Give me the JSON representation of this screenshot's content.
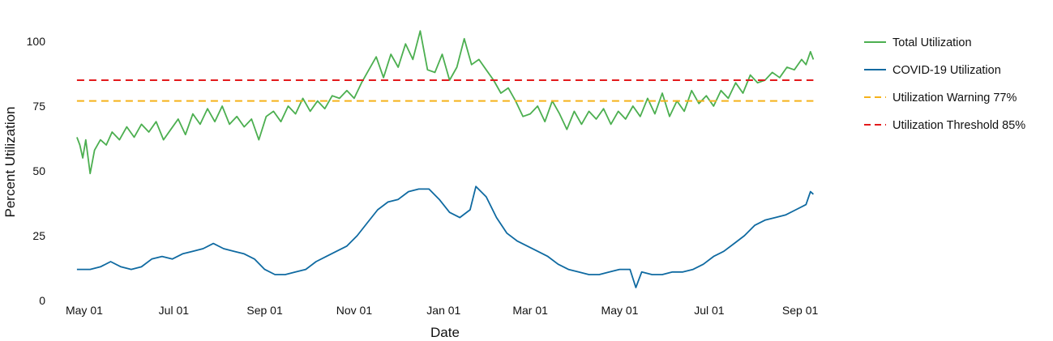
{
  "colors": {
    "total": "#4caf50",
    "covid": "#0f6aa1",
    "warning": "#f5b21b",
    "threshold": "#e31a1c"
  },
  "chart_data": {
    "type": "line",
    "title": "",
    "xlabel": "Date",
    "ylabel": "Percent Utilization",
    "x_range": [
      "2020-04-15",
      "2021-09-12"
    ],
    "ylim": [
      0,
      100
    ],
    "yticks": [
      0,
      25,
      50,
      75,
      100
    ],
    "xticks": [
      {
        "date": "2020-05-01",
        "label": "May 01"
      },
      {
        "date": "2020-07-01",
        "label": "Jul 01"
      },
      {
        "date": "2020-09-01",
        "label": "Sep 01"
      },
      {
        "date": "2020-11-01",
        "label": "Nov 01"
      },
      {
        "date": "2021-01-01",
        "label": "Jan 01"
      },
      {
        "date": "2021-03-01",
        "label": "Mar 01"
      },
      {
        "date": "2021-05-01",
        "label": "May 01"
      },
      {
        "date": "2021-07-01",
        "label": "Jul 01"
      },
      {
        "date": "2021-09-01",
        "label": "Sep 01"
      }
    ],
    "grid": false,
    "legend_position": "right",
    "series": [
      {
        "name": "Total Utilization",
        "style": "solid",
        "points": [
          [
            "2020-04-26",
            63
          ],
          [
            "2020-04-28",
            60
          ],
          [
            "2020-04-30",
            55
          ],
          [
            "2020-05-02",
            62
          ],
          [
            "2020-05-05",
            49
          ],
          [
            "2020-05-08",
            58
          ],
          [
            "2020-05-12",
            62
          ],
          [
            "2020-05-16",
            60
          ],
          [
            "2020-05-20",
            65
          ],
          [
            "2020-05-25",
            62
          ],
          [
            "2020-05-30",
            67
          ],
          [
            "2020-06-04",
            63
          ],
          [
            "2020-06-09",
            68
          ],
          [
            "2020-06-14",
            65
          ],
          [
            "2020-06-19",
            69
          ],
          [
            "2020-06-24",
            62
          ],
          [
            "2020-06-29",
            66
          ],
          [
            "2020-07-04",
            70
          ],
          [
            "2020-07-09",
            64
          ],
          [
            "2020-07-14",
            72
          ],
          [
            "2020-07-19",
            68
          ],
          [
            "2020-07-24",
            74
          ],
          [
            "2020-07-29",
            69
          ],
          [
            "2020-08-03",
            75
          ],
          [
            "2020-08-08",
            68
          ],
          [
            "2020-08-13",
            71
          ],
          [
            "2020-08-18",
            67
          ],
          [
            "2020-08-23",
            70
          ],
          [
            "2020-08-28",
            62
          ],
          [
            "2020-09-02",
            71
          ],
          [
            "2020-09-07",
            73
          ],
          [
            "2020-09-12",
            69
          ],
          [
            "2020-09-17",
            75
          ],
          [
            "2020-09-22",
            72
          ],
          [
            "2020-09-27",
            78
          ],
          [
            "2020-10-02",
            73
          ],
          [
            "2020-10-07",
            77
          ],
          [
            "2020-10-12",
            74
          ],
          [
            "2020-10-17",
            79
          ],
          [
            "2020-10-22",
            78
          ],
          [
            "2020-10-27",
            81
          ],
          [
            "2020-11-01",
            78
          ],
          [
            "2020-11-06",
            84
          ],
          [
            "2020-11-11",
            89
          ],
          [
            "2020-11-16",
            94
          ],
          [
            "2020-11-21",
            86
          ],
          [
            "2020-11-26",
            95
          ],
          [
            "2020-12-01",
            90
          ],
          [
            "2020-12-06",
            99
          ],
          [
            "2020-12-11",
            93
          ],
          [
            "2020-12-16",
            104
          ],
          [
            "2020-12-21",
            89
          ],
          [
            "2020-12-26",
            88
          ],
          [
            "2020-12-31",
            95
          ],
          [
            "2021-01-05",
            85
          ],
          [
            "2021-01-10",
            90
          ],
          [
            "2021-01-15",
            101
          ],
          [
            "2021-01-20",
            91
          ],
          [
            "2021-01-25",
            93
          ],
          [
            "2021-01-30",
            89
          ],
          [
            "2021-02-04",
            85
          ],
          [
            "2021-02-09",
            80
          ],
          [
            "2021-02-14",
            82
          ],
          [
            "2021-02-19",
            77
          ],
          [
            "2021-02-24",
            71
          ],
          [
            "2021-03-01",
            72
          ],
          [
            "2021-03-06",
            75
          ],
          [
            "2021-03-11",
            69
          ],
          [
            "2021-03-16",
            77
          ],
          [
            "2021-03-21",
            72
          ],
          [
            "2021-03-26",
            66
          ],
          [
            "2021-03-31",
            73
          ],
          [
            "2021-04-05",
            68
          ],
          [
            "2021-04-10",
            73
          ],
          [
            "2021-04-15",
            70
          ],
          [
            "2021-04-20",
            74
          ],
          [
            "2021-04-25",
            68
          ],
          [
            "2021-04-30",
            73
          ],
          [
            "2021-05-05",
            70
          ],
          [
            "2021-05-10",
            75
          ],
          [
            "2021-05-15",
            71
          ],
          [
            "2021-05-20",
            78
          ],
          [
            "2021-05-25",
            72
          ],
          [
            "2021-05-30",
            80
          ],
          [
            "2021-06-04",
            71
          ],
          [
            "2021-06-09",
            77
          ],
          [
            "2021-06-14",
            73
          ],
          [
            "2021-06-19",
            81
          ],
          [
            "2021-06-24",
            76
          ],
          [
            "2021-06-29",
            79
          ],
          [
            "2021-07-04",
            75
          ],
          [
            "2021-07-09",
            81
          ],
          [
            "2021-07-14",
            78
          ],
          [
            "2021-07-19",
            84
          ],
          [
            "2021-07-24",
            80
          ],
          [
            "2021-07-29",
            87
          ],
          [
            "2021-08-03",
            84
          ],
          [
            "2021-08-08",
            85
          ],
          [
            "2021-08-13",
            88
          ],
          [
            "2021-08-18",
            86
          ],
          [
            "2021-08-23",
            90
          ],
          [
            "2021-08-28",
            89
          ],
          [
            "2021-09-02",
            93
          ],
          [
            "2021-09-05",
            91
          ],
          [
            "2021-09-08",
            96
          ],
          [
            "2021-09-10",
            93
          ]
        ]
      },
      {
        "name": "COVID-19 Utilization",
        "style": "solid",
        "points": [
          [
            "2020-04-26",
            12
          ],
          [
            "2020-05-05",
            12
          ],
          [
            "2020-05-12",
            13
          ],
          [
            "2020-05-19",
            15
          ],
          [
            "2020-05-26",
            13
          ],
          [
            "2020-06-02",
            12
          ],
          [
            "2020-06-09",
            13
          ],
          [
            "2020-06-16",
            16
          ],
          [
            "2020-06-23",
            17
          ],
          [
            "2020-06-30",
            16
          ],
          [
            "2020-07-07",
            18
          ],
          [
            "2020-07-14",
            19
          ],
          [
            "2020-07-21",
            20
          ],
          [
            "2020-07-28",
            22
          ],
          [
            "2020-08-04",
            20
          ],
          [
            "2020-08-11",
            19
          ],
          [
            "2020-08-18",
            18
          ],
          [
            "2020-08-25",
            16
          ],
          [
            "2020-09-01",
            12
          ],
          [
            "2020-09-08",
            10
          ],
          [
            "2020-09-15",
            10
          ],
          [
            "2020-09-22",
            11
          ],
          [
            "2020-09-29",
            12
          ],
          [
            "2020-10-06",
            15
          ],
          [
            "2020-10-13",
            17
          ],
          [
            "2020-10-20",
            19
          ],
          [
            "2020-10-27",
            21
          ],
          [
            "2020-11-03",
            25
          ],
          [
            "2020-11-10",
            30
          ],
          [
            "2020-11-17",
            35
          ],
          [
            "2020-11-24",
            38
          ],
          [
            "2020-12-01",
            39
          ],
          [
            "2020-12-08",
            42
          ],
          [
            "2020-12-15",
            43
          ],
          [
            "2020-12-22",
            43
          ],
          [
            "2020-12-29",
            39
          ],
          [
            "2021-01-05",
            34
          ],
          [
            "2021-01-12",
            32
          ],
          [
            "2021-01-19",
            35
          ],
          [
            "2021-01-23",
            44
          ],
          [
            "2021-01-30",
            40
          ],
          [
            "2021-02-06",
            32
          ],
          [
            "2021-02-13",
            26
          ],
          [
            "2021-02-20",
            23
          ],
          [
            "2021-02-27",
            21
          ],
          [
            "2021-03-06",
            19
          ],
          [
            "2021-03-13",
            17
          ],
          [
            "2021-03-20",
            14
          ],
          [
            "2021-03-27",
            12
          ],
          [
            "2021-04-03",
            11
          ],
          [
            "2021-04-10",
            10
          ],
          [
            "2021-04-17",
            10
          ],
          [
            "2021-04-24",
            11
          ],
          [
            "2021-05-01",
            12
          ],
          [
            "2021-05-08",
            12
          ],
          [
            "2021-05-12",
            5
          ],
          [
            "2021-05-16",
            11
          ],
          [
            "2021-05-23",
            10
          ],
          [
            "2021-05-30",
            10
          ],
          [
            "2021-06-06",
            11
          ],
          [
            "2021-06-13",
            11
          ],
          [
            "2021-06-20",
            12
          ],
          [
            "2021-06-27",
            14
          ],
          [
            "2021-07-04",
            17
          ],
          [
            "2021-07-11",
            19
          ],
          [
            "2021-07-18",
            22
          ],
          [
            "2021-07-25",
            25
          ],
          [
            "2021-08-01",
            29
          ],
          [
            "2021-08-08",
            31
          ],
          [
            "2021-08-15",
            32
          ],
          [
            "2021-08-22",
            33
          ],
          [
            "2021-08-29",
            35
          ],
          [
            "2021-09-05",
            37
          ],
          [
            "2021-09-08",
            42
          ],
          [
            "2021-09-10",
            41
          ]
        ]
      },
      {
        "name": "Utilization Warning 77%",
        "style": "dashed",
        "points": [
          [
            "2020-04-26",
            77
          ],
          [
            "2021-09-10",
            77
          ]
        ]
      },
      {
        "name": "Utilization Threshold 85%",
        "style": "dashed",
        "points": [
          [
            "2020-04-26",
            85
          ],
          [
            "2021-09-10",
            85
          ]
        ]
      }
    ]
  }
}
